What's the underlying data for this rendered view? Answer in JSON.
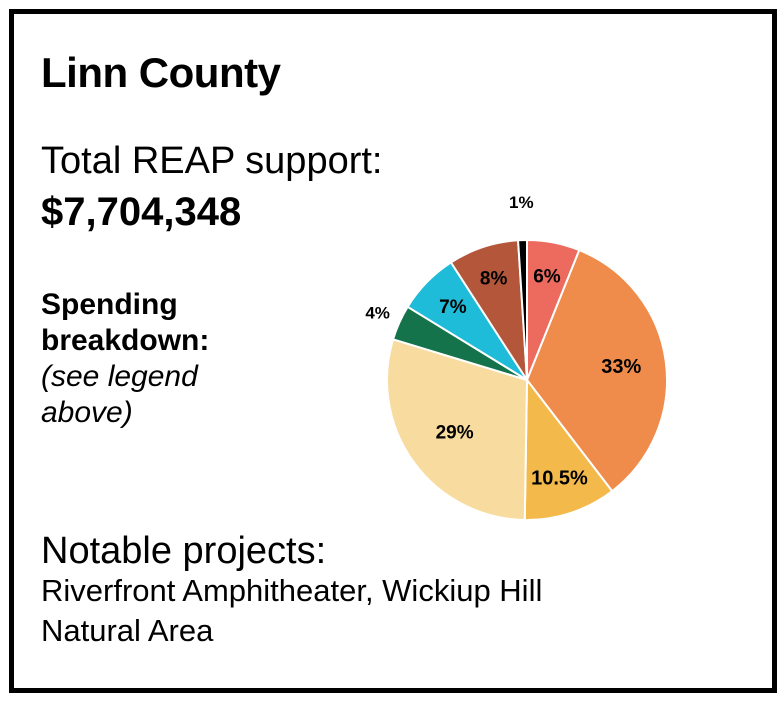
{
  "card": {
    "title": "Linn County",
    "total_label": "Total REAP support:",
    "total_value": "$7,704,348",
    "breakdown_heading_line1": "Spending",
    "breakdown_heading_line2": "breakdown:",
    "breakdown_note_line1": "(see legend",
    "breakdown_note_line2": "above)",
    "projects_label": "Notable projects:",
    "projects_value_line1": "Riverfront Amphitheater, Wickiup Hill",
    "projects_value_line2": "Natural Area"
  },
  "chart_data": {
    "type": "pie",
    "title": "",
    "start_angle_deg": 0,
    "direction": "clockwise",
    "slices": [
      {
        "label": "6%",
        "value": 6,
        "color": "#ec6a5e"
      },
      {
        "label": "33%",
        "value": 33,
        "color": "#ef8c4c"
      },
      {
        "label": "10.5%",
        "value": 10.5,
        "color": "#f3ba4b"
      },
      {
        "label": "29%",
        "value": 29,
        "color": "#f8dc9f"
      },
      {
        "label": "4%",
        "value": 4,
        "color": "#14734a"
      },
      {
        "label": "7%",
        "value": 7,
        "color": "#1ebcd8"
      },
      {
        "label": "8%",
        "value": 8,
        "color": "#b3563a"
      },
      {
        "label": "1%",
        "value": 1,
        "color": "#000000"
      }
    ]
  }
}
